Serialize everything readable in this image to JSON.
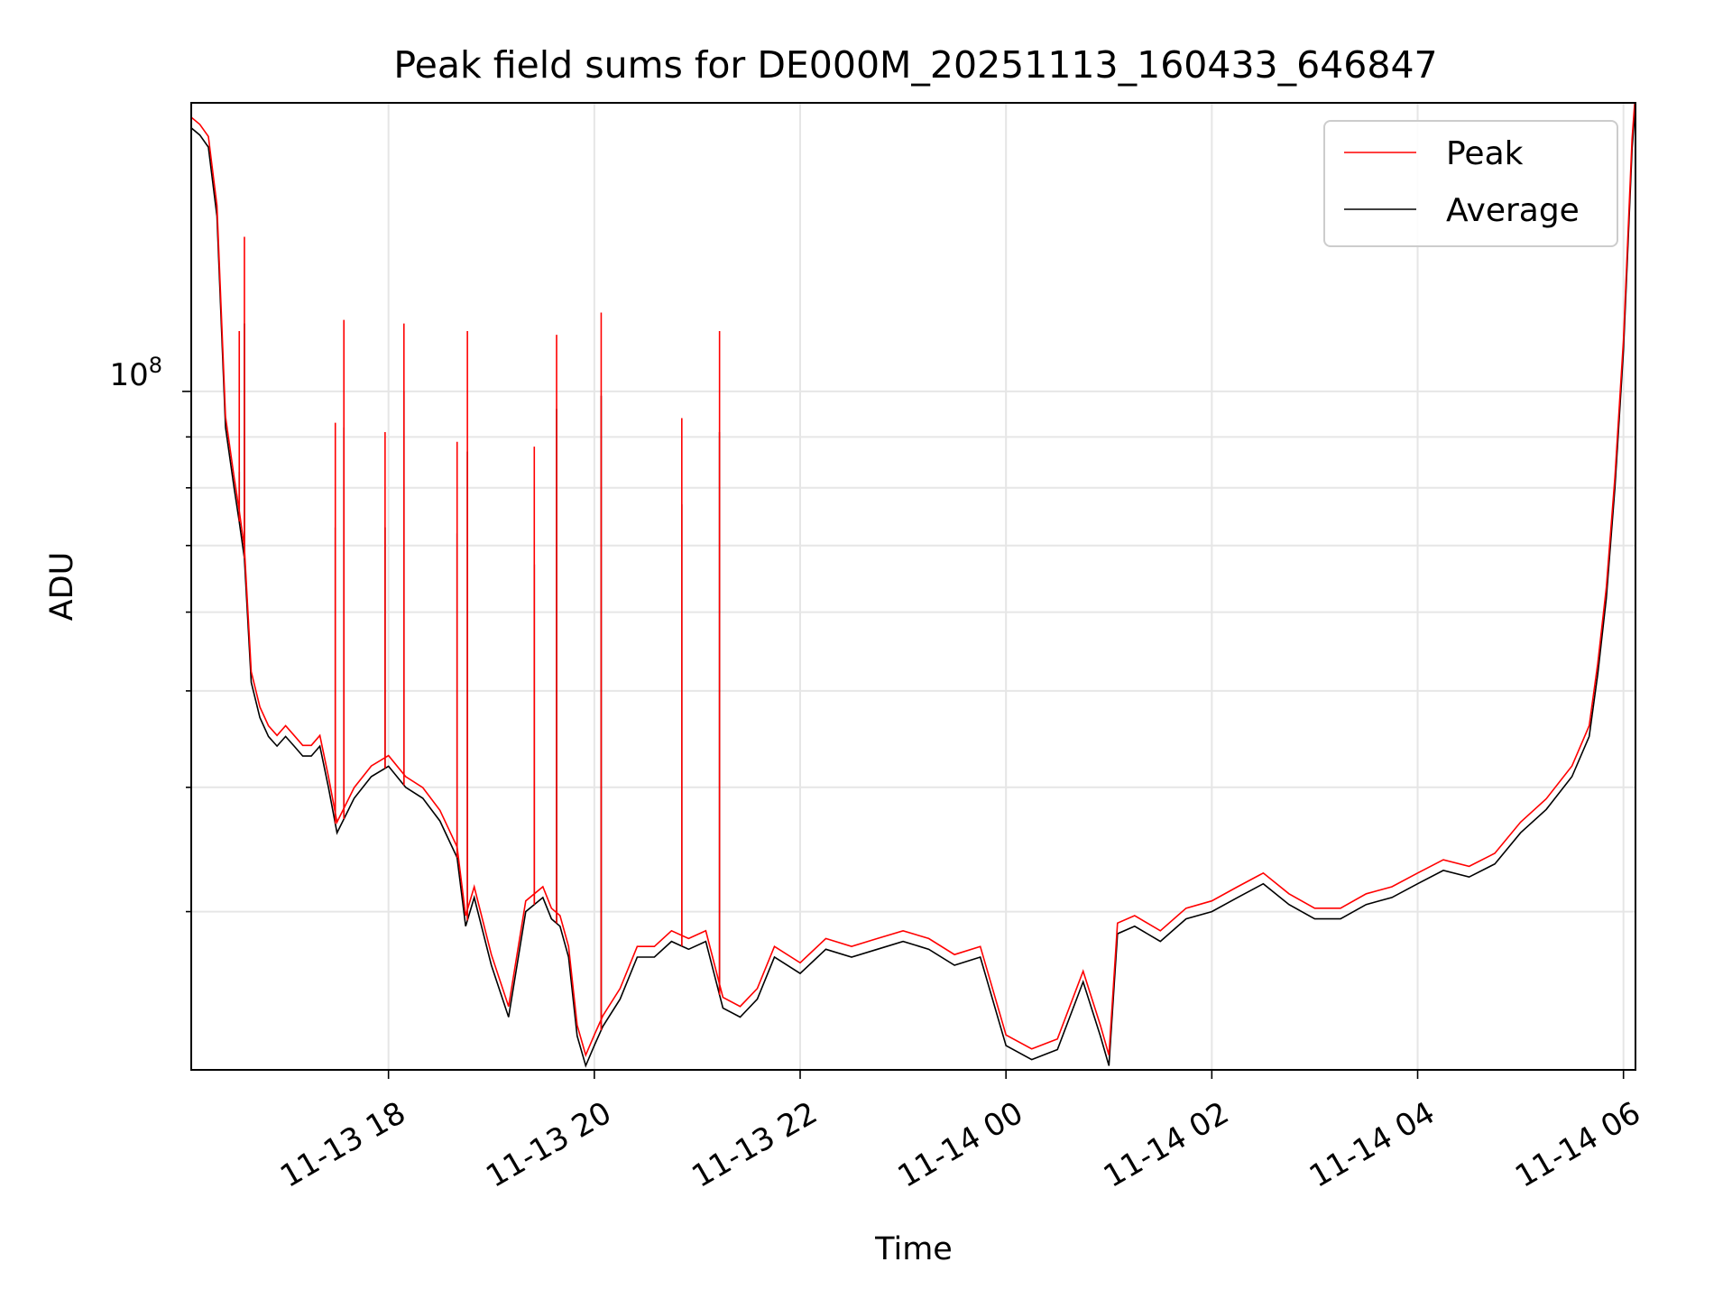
{
  "chart_data": {
    "type": "line",
    "title": "Peak field sums for DE000M_20251113_160433_646847",
    "xlabel": "Time",
    "ylabel": "ADU",
    "yscale": "log",
    "xlim": [
      "2025-11-13 16:05",
      "2025-11-14 06:07"
    ],
    "ylim": [
      20800000.0,
      195000000.0
    ],
    "x_ticks": [
      "11-13 18",
      "11-13 20",
      "11-13 22",
      "11-14 00",
      "11-14 02",
      "11-14 04",
      "11-14 06"
    ],
    "y_tick_major": {
      "label": "10",
      "exponent": "8",
      "value": 100000000
    },
    "y_tick_minor": [
      30000000,
      40000000,
      50000000,
      60000000,
      70000000,
      80000000,
      90000000
    ],
    "grid": true,
    "legend": {
      "position": "top-right",
      "entries": [
        "Peak",
        "Average"
      ]
    },
    "colors": {
      "Peak": "#ff0000",
      "Average": "#000000"
    },
    "series": [
      {
        "name": "Average",
        "x": [
          "2025-11-13 16:05",
          "2025-11-13 16:10",
          "2025-11-13 16:15",
          "2025-11-13 16:20",
          "2025-11-13 16:25",
          "2025-11-13 16:30",
          "2025-11-13 16:33",
          "2025-11-13 16:36",
          "2025-11-13 16:40",
          "2025-11-13 16:45",
          "2025-11-13 16:50",
          "2025-11-13 16:55",
          "2025-11-13 17:00",
          "2025-11-13 17:05",
          "2025-11-13 17:10",
          "2025-11-13 17:15",
          "2025-11-13 17:20",
          "2025-11-13 17:25",
          "2025-11-13 17:30",
          "2025-11-13 17:40",
          "2025-11-13 17:50",
          "2025-11-13 18:00",
          "2025-11-13 18:10",
          "2025-11-13 18:20",
          "2025-11-13 18:30",
          "2025-11-13 18:40",
          "2025-11-13 18:45",
          "2025-11-13 18:50",
          "2025-11-13 19:00",
          "2025-11-13 19:10",
          "2025-11-13 19:20",
          "2025-11-13 19:30",
          "2025-11-13 19:35",
          "2025-11-13 19:40",
          "2025-11-13 19:45",
          "2025-11-13 19:50",
          "2025-11-13 19:55",
          "2025-11-13 20:00",
          "2025-11-13 20:05",
          "2025-11-13 20:15",
          "2025-11-13 20:25",
          "2025-11-13 20:35",
          "2025-11-13 20:45",
          "2025-11-13 20:55",
          "2025-11-13 21:05",
          "2025-11-13 21:15",
          "2025-11-13 21:25",
          "2025-11-13 21:35",
          "2025-11-13 21:45",
          "2025-11-13 22:00",
          "2025-11-13 22:15",
          "2025-11-13 22:30",
          "2025-11-13 22:45",
          "2025-11-13 23:00",
          "2025-11-13 23:15",
          "2025-11-13 23:30",
          "2025-11-13 23:45",
          "2025-11-14 00:00",
          "2025-11-14 00:15",
          "2025-11-14 00:30",
          "2025-11-14 00:45",
          "2025-11-14 00:55",
          "2025-11-14 01:00",
          "2025-11-14 01:05",
          "2025-11-14 01:15",
          "2025-11-14 01:30",
          "2025-11-14 01:45",
          "2025-11-14 02:00",
          "2025-11-14 02:15",
          "2025-11-14 02:30",
          "2025-11-14 02:45",
          "2025-11-14 03:00",
          "2025-11-14 03:15",
          "2025-11-14 03:30",
          "2025-11-14 03:45",
          "2025-11-14 04:00",
          "2025-11-14 04:15",
          "2025-11-14 04:30",
          "2025-11-14 04:45",
          "2025-11-14 05:00",
          "2025-11-14 05:15",
          "2025-11-14 05:30",
          "2025-11-14 05:40",
          "2025-11-14 05:45",
          "2025-11-14 05:50",
          "2025-11-14 05:55",
          "2025-11-14 06:00",
          "2025-11-14 06:05",
          "2025-11-14 06:07"
        ],
        "values": [
          184000000,
          181000000,
          176000000,
          150000000,
          92000000,
          80000000,
          74000000,
          68000000,
          51000000,
          47000000,
          45000000,
          44000000,
          45000000,
          44000000,
          43000000,
          43000000,
          44000000,
          40000000,
          36000000,
          39000000,
          41000000,
          42000000,
          40000000,
          39000000,
          37000000,
          34000000,
          29000000,
          31000000,
          26500000,
          23500000,
          30000000,
          31000000,
          29500000,
          29000000,
          27000000,
          22500000,
          21000000,
          22000000,
          23000000,
          24500000,
          27000000,
          27000000,
          28000000,
          27500000,
          28000000,
          24000000,
          23500000,
          24500000,
          27000000,
          26000000,
          27500000,
          27000000,
          27500000,
          28000000,
          27500000,
          26500000,
          27000000,
          22000000,
          21300000,
          21800000,
          25500000,
          22500000,
          21000000,
          28500000,
          29000000,
          28000000,
          29500000,
          30000000,
          31000000,
          32000000,
          30500000,
          29500000,
          29500000,
          30500000,
          31000000,
          32000000,
          33000000,
          32500000,
          33500000,
          36000000,
          38000000,
          41000000,
          45000000,
          52000000,
          62000000,
          80000000,
          110000000,
          175000000,
          195000000
        ]
      },
      {
        "name": "Peak",
        "spikes": [
          {
            "x": "2025-11-13 16:33",
            "peak": 115000000,
            "average": 83000000
          },
          {
            "x": "2025-11-13 16:36",
            "peak": 143000000,
            "average": 117000000
          },
          {
            "x": "2025-11-13 17:29",
            "peak": 93000000,
            "average": 73000000
          },
          {
            "x": "2025-11-13 17:34",
            "peak": 118000000,
            "average": 92000000
          },
          {
            "x": "2025-11-13 17:58",
            "peak": 91000000,
            "average": 73000000
          },
          {
            "x": "2025-11-13 18:09",
            "peak": 117000000,
            "average": 100000000
          },
          {
            "x": "2025-11-13 18:40",
            "peak": 89000000,
            "average": 72000000
          },
          {
            "x": "2025-11-13 18:46",
            "peak": 115000000,
            "average": 87000000
          },
          {
            "x": "2025-11-13 19:25",
            "peak": 88000000,
            "average": 67000000
          },
          {
            "x": "2025-11-13 19:38",
            "peak": 114000000,
            "average": 96000000
          },
          {
            "x": "2025-11-13 20:04",
            "peak": 120000000,
            "average": 99000000
          },
          {
            "x": "2025-11-13 20:51",
            "peak": 94000000,
            "average": 77000000
          },
          {
            "x": "2025-11-13 21:13",
            "peak": 115000000,
            "average": 91000000
          }
        ]
      }
    ]
  }
}
